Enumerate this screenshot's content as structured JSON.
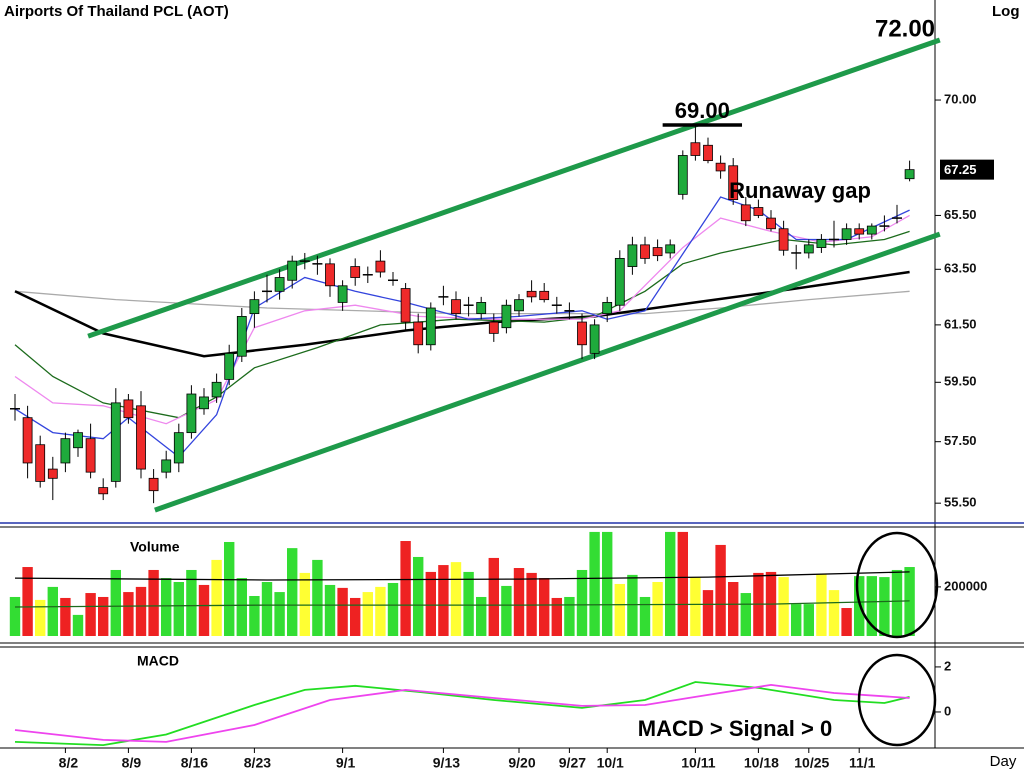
{
  "chart_data": [
    {
      "type": "candlestick",
      "title": "Airports Of Thailand PCL (AOT)",
      "scale_label": "Log",
      "log_scale": true,
      "categories": [
        null,
        null,
        null,
        null,
        "8/2",
        null,
        null,
        null,
        null,
        "8/9",
        null,
        null,
        null,
        null,
        "8/16",
        null,
        null,
        null,
        null,
        "8/23",
        null,
        null,
        null,
        null,
        null,
        null,
        "9/1",
        null,
        null,
        null,
        null,
        null,
        null,
        null,
        "9/13",
        null,
        null,
        null,
        null,
        null,
        "9/20",
        null,
        null,
        null,
        "9/27",
        null,
        null,
        "10/1",
        null,
        null,
        null,
        null,
        null,
        null,
        "10/11",
        null,
        null,
        null,
        null,
        "10/18",
        null,
        null,
        null,
        "10/25",
        null,
        null,
        null,
        "11/1",
        null,
        null,
        null,
        null
      ],
      "candles": [
        [
          58.6,
          59.1,
          58.2,
          58.6
        ],
        [
          58.3,
          58.7,
          56.3,
          56.8
        ],
        [
          57.4,
          57.7,
          56.0,
          56.2
        ],
        [
          56.6,
          57.0,
          55.6,
          56.3
        ],
        [
          56.8,
          57.8,
          56.5,
          57.6
        ],
        [
          57.3,
          57.9,
          57.0,
          57.8
        ],
        [
          57.6,
          58.1,
          56.3,
          56.5
        ],
        [
          56.0,
          56.3,
          55.6,
          55.8
        ],
        [
          56.2,
          59.3,
          56.0,
          58.8
        ],
        [
          58.9,
          59.1,
          58.1,
          58.3
        ],
        [
          58.7,
          59.2,
          56.3,
          56.6
        ],
        [
          56.3,
          56.6,
          55.5,
          55.9
        ],
        [
          56.5,
          57.2,
          56.3,
          56.9
        ],
        [
          56.8,
          58.1,
          56.5,
          57.8
        ],
        [
          57.8,
          59.4,
          57.6,
          59.1
        ],
        [
          58.6,
          59.3,
          58.4,
          59.0
        ],
        [
          59.0,
          59.8,
          58.8,
          59.5
        ],
        [
          59.6,
          60.8,
          59.4,
          60.5
        ],
        [
          60.4,
          62.1,
          60.2,
          61.8
        ],
        [
          61.9,
          62.7,
          61.4,
          62.4
        ],
        [
          62.7,
          63.3,
          62.3,
          62.7
        ],
        [
          62.7,
          63.5,
          62.4,
          63.2
        ],
        [
          63.1,
          64.0,
          62.8,
          63.8
        ],
        [
          63.8,
          64.1,
          63.5,
          63.8
        ],
        [
          63.7,
          64.0,
          63.3,
          63.7
        ],
        [
          63.7,
          63.9,
          62.5,
          62.9
        ],
        [
          62.3,
          63.1,
          62.0,
          62.9
        ],
        [
          63.6,
          63.9,
          62.9,
          63.2
        ],
        [
          63.3,
          63.6,
          63.0,
          63.3
        ],
        [
          63.8,
          64.2,
          63.2,
          63.4
        ],
        [
          63.1,
          63.4,
          62.9,
          63.1
        ],
        [
          62.8,
          63.0,
          61.3,
          61.6
        ],
        [
          61.6,
          61.9,
          60.5,
          60.8
        ],
        [
          60.8,
          62.3,
          60.6,
          62.1
        ],
        [
          62.5,
          62.9,
          62.2,
          62.5
        ],
        [
          62.4,
          62.7,
          61.7,
          61.9
        ],
        [
          62.2,
          62.5,
          61.8,
          62.2
        ],
        [
          61.9,
          62.5,
          61.7,
          62.3
        ],
        [
          61.6,
          61.9,
          60.9,
          61.2
        ],
        [
          61.4,
          62.4,
          61.2,
          62.2
        ],
        [
          62.0,
          62.6,
          61.8,
          62.4
        ],
        [
          62.7,
          63.1,
          62.3,
          62.5
        ],
        [
          62.7,
          63.0,
          62.3,
          62.4
        ],
        [
          62.2,
          62.5,
          61.9,
          62.2
        ],
        [
          62.0,
          62.3,
          61.7,
          62.0
        ],
        [
          61.6,
          61.9,
          60.3,
          60.8
        ],
        [
          60.5,
          61.7,
          60.3,
          61.5
        ],
        [
          61.9,
          62.5,
          61.6,
          62.3
        ],
        [
          62.2,
          64.2,
          62.0,
          63.9
        ],
        [
          63.6,
          64.7,
          63.3,
          64.4
        ],
        [
          64.4,
          64.7,
          63.7,
          63.9
        ],
        [
          64.3,
          64.6,
          63.8,
          64.0
        ],
        [
          64.1,
          64.6,
          63.9,
          64.4
        ],
        [
          66.3,
          68.0,
          66.1,
          67.8
        ],
        [
          68.3,
          69.0,
          67.6,
          67.8
        ],
        [
          68.2,
          68.5,
          67.5,
          67.6
        ],
        [
          67.5,
          67.8,
          66.9,
          67.2
        ],
        [
          67.4,
          67.7,
          65.9,
          66.1
        ],
        [
          65.9,
          66.2,
          65.1,
          65.3
        ],
        [
          65.8,
          66.1,
          65.4,
          65.5
        ],
        [
          65.4,
          65.7,
          64.9,
          65.0
        ],
        [
          65.0,
          65.3,
          64.0,
          64.2
        ],
        [
          64.1,
          64.4,
          63.5,
          64.1
        ],
        [
          64.1,
          64.6,
          63.9,
          64.4
        ],
        [
          64.3,
          64.8,
          64.1,
          64.6
        ],
        [
          64.6,
          65.3,
          64.3,
          64.6
        ],
        [
          64.6,
          65.2,
          64.4,
          65.0
        ],
        [
          65.0,
          65.2,
          64.6,
          64.8
        ],
        [
          64.8,
          65.2,
          64.6,
          65.1
        ],
        [
          65.1,
          65.5,
          64.9,
          65.1
        ],
        [
          65.4,
          65.9,
          65.2,
          65.4
        ],
        [
          66.9,
          67.6,
          66.8,
          67.25
        ]
      ],
      "up_color": "#1faa3c",
      "down_color": "#ee2a2a",
      "doji_color": "#000000",
      "ylim": [
        54.87,
        74.15
      ],
      "yticks": [
        {
          "value": 55.5,
          "label": "55.50"
        },
        {
          "value": 57.5,
          "label": "57.50"
        },
        {
          "value": 59.5,
          "label": "59.50"
        },
        {
          "value": 61.5,
          "label": "61.50"
        },
        {
          "value": 63.5,
          "label": "63.50"
        },
        {
          "value": 65.5,
          "label": "65.50"
        },
        {
          "value": 70,
          "label": "70.00"
        }
      ],
      "overlays": [
        {
          "color": "#aaaaaa",
          "x": [
            0,
            8,
            20,
            35,
            50,
            56,
            63,
            71
          ],
          "values": [
            62.7,
            62.4,
            62.1,
            61.9,
            61.9,
            62.1,
            62.4,
            62.7
          ]
        },
        {
          "color": "#000000",
          "x": [
            0,
            7,
            15,
            23,
            31,
            38,
            46,
            54,
            62,
            71
          ],
          "values": [
            62.7,
            61.2,
            60.4,
            60.8,
            61.3,
            61.6,
            61.8,
            62.3,
            62.8,
            63.4
          ]
        },
        {
          "color": "#1c6b1c",
          "x": [
            0,
            3,
            7,
            13,
            16,
            19,
            24,
            29,
            35,
            42,
            46,
            50,
            53,
            56,
            61,
            65,
            69,
            71
          ],
          "values": [
            60.8,
            59.7,
            58.8,
            58.3,
            59.0,
            60.0,
            60.7,
            61.5,
            61.7,
            61.6,
            61.8,
            62.7,
            63.7,
            64.1,
            64.6,
            64.4,
            64.6,
            64.9
          ]
        },
        {
          "color": "#ee88ee",
          "x": [
            0,
            3,
            7,
            12,
            16,
            19,
            23,
            27,
            32,
            38,
            45,
            48,
            53,
            56,
            60,
            64,
            68,
            71
          ],
          "values": [
            59.7,
            58.8,
            58.7,
            58.1,
            58.9,
            61.4,
            62.0,
            62.2,
            61.8,
            61.7,
            61.7,
            62.0,
            64.3,
            65.4,
            64.9,
            64.5,
            64.7,
            65.5
          ]
        },
        {
          "color": "#3344dd",
          "x": [
            0,
            3,
            7,
            9,
            13,
            16,
            19,
            23,
            27,
            31,
            36,
            40,
            45,
            47,
            50,
            56,
            59,
            62,
            66,
            71
          ],
          "values": [
            58.6,
            57.8,
            57.6,
            58.3,
            57.0,
            58.4,
            62.1,
            63.2,
            62.7,
            62.3,
            61.7,
            61.8,
            62.0,
            61.7,
            62.0,
            66.2,
            65.7,
            64.6,
            64.6,
            65.7
          ]
        }
      ],
      "channels": [
        {
          "color": "#1e9a4a",
          "x": [
            5.8,
            73.4
          ],
          "values": [
            61.1,
            72.46
          ]
        },
        {
          "color": "#1e9a4a",
          "x": [
            11.1,
            73.4
          ],
          "values": [
            55.28,
            64.8
          ]
        }
      ],
      "resistance": {
        "value": 69,
        "label": "69.00"
      },
      "target": {
        "value": 72,
        "label": "72.00"
      },
      "annotation": "Runaway gap"
    },
    {
      "type": "bar",
      "title": "Volume",
      "values": [
        159000,
        281000,
        147000,
        200000,
        155000,
        86000,
        175000,
        159000,
        269000,
        179000,
        200000,
        269000,
        236000,
        220000,
        269000,
        208000,
        310000,
        383000,
        236000,
        163000,
        220000,
        179000,
        358000,
        257000,
        310000,
        208000,
        196000,
        155000,
        179000,
        200000,
        216000,
        387000,
        322000,
        261000,
        289000,
        301000,
        261000,
        159000,
        318000,
        204000,
        277000,
        257000,
        236000,
        155000,
        159000,
        269000,
        424000,
        424000,
        212000,
        249000,
        159000,
        220000,
        424000,
        424000,
        240000,
        187000,
        371000,
        220000,
        175000,
        257000,
        261000,
        240000,
        130000,
        130000,
        253000,
        187000,
        114000,
        244000,
        244000,
        240000,
        269000,
        281000
      ],
      "colors": [
        "#33dd33",
        "#ee2222",
        "#ffff33",
        "#33dd33",
        "#ee2222",
        "#33dd33",
        "#ee2222",
        "#ee2222",
        "#33dd33",
        "#ee2222",
        "#ee2222",
        "#ee2222",
        "#33dd33",
        "#33dd33",
        "#33dd33",
        "#ee2222",
        "#ffff33",
        "#33dd33",
        "#33dd33",
        "#33dd33",
        "#33dd33",
        "#33dd33",
        "#33dd33",
        "#ffff33",
        "#33dd33",
        "#33dd33",
        "#ee2222",
        "#ee2222",
        "#ffff33",
        "#ffff33",
        "#33dd33",
        "#ee2222",
        "#33dd33",
        "#ee2222",
        "#ee2222",
        "#ffff33",
        "#33dd33",
        "#33dd33",
        "#ee2222",
        "#33dd33",
        "#ee2222",
        "#ee2222",
        "#ee2222",
        "#ee2222",
        "#33dd33",
        "#33dd33",
        "#33dd33",
        "#33dd33",
        "#ffff33",
        "#33dd33",
        "#33dd33",
        "#ffff33",
        "#33dd33",
        "#ee2222",
        "#ffff33",
        "#ee2222",
        "#ee2222",
        "#ee2222",
        "#33dd33",
        "#ee2222",
        "#ee2222",
        "#ffff33",
        "#33dd33",
        "#33dd33",
        "#ffff33",
        "#ffff33",
        "#ee2222",
        "#33dd33",
        "#33dd33",
        "#33dd33",
        "#33dd33",
        "#33dd33"
      ],
      "ylim": [
        0,
        440000
      ],
      "yticks": [
        200000
      ],
      "overlays": [
        {
          "color": "#000000",
          "x": [
            0,
            20,
            40,
            55,
            71
          ],
          "values": [
            236000,
            228000,
            232000,
            240000,
            261000
          ]
        },
        {
          "color": "#1c6b1c",
          "x": [
            0,
            20,
            40,
            60,
            71
          ],
          "values": [
            118000,
            126000,
            126000,
            130000,
            143000
          ]
        }
      ]
    },
    {
      "type": "line",
      "title": "MACD",
      "series": [
        {
          "color": "#22dd22",
          "x": [
            0,
            7,
            12,
            19,
            23,
            27,
            32,
            38,
            45,
            50,
            54,
            59,
            65,
            69,
            71
          ],
          "values": [
            -1.33,
            -1.47,
            -1.0,
            0.31,
            0.98,
            1.16,
            0.89,
            0.53,
            0.18,
            0.53,
            1.33,
            1.07,
            0.53,
            0.4,
            0.67
          ]
        },
        {
          "color": "#ee44ee",
          "x": [
            0,
            7,
            12,
            19,
            25,
            31,
            38,
            45,
            50,
            54,
            60,
            65,
            71
          ],
          "values": [
            -0.8,
            -1.24,
            -1.33,
            -0.58,
            0.53,
            0.98,
            0.62,
            0.27,
            0.31,
            0.67,
            1.2,
            0.84,
            0.62
          ]
        }
      ],
      "ylim": [
        -1.6,
        2.84
      ],
      "yticks": [
        0,
        2
      ],
      "annotation": "MACD > Signal > 0",
      "x_label": "Day"
    }
  ]
}
